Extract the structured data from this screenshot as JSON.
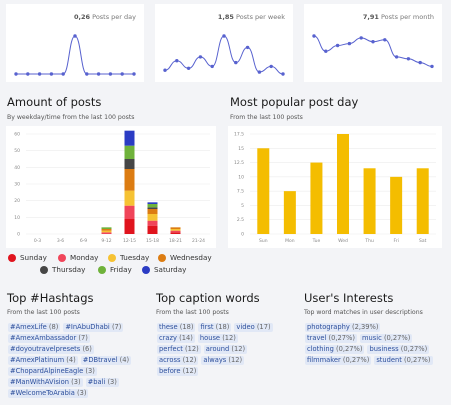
{
  "stats": [
    {
      "value": "0,26",
      "label": "Posts per day",
      "series": [
        0,
        0,
        0,
        0,
        0,
        1,
        0,
        0,
        0,
        0,
        0
      ]
    },
    {
      "value": "1,85",
      "label": "Posts per week",
      "series": [
        0.1,
        0.35,
        0.15,
        0.45,
        0.2,
        1,
        0.3,
        0.7,
        0.05,
        0.2,
        0
      ]
    },
    {
      "value": "7,91",
      "label": "Posts per month",
      "series": [
        1,
        0.6,
        0.75,
        0.8,
        0.95,
        0.85,
        0.9,
        0.45,
        0.4,
        0.3,
        0.2
      ]
    }
  ],
  "amount": {
    "title": "Amount of posts",
    "subtitle": "By weekday/time from the last 100 posts"
  },
  "popular": {
    "title": "Most popular post day",
    "subtitle": "From the last 100 posts"
  },
  "chart_data": [
    {
      "type": "bar",
      "stacked": true,
      "categories": [
        "0-3",
        "3-6",
        "6-9",
        "9-12",
        "12-15",
        "15-18",
        "18-21",
        "21-24"
      ],
      "ylim": [
        0,
        60
      ],
      "yticks": [
        0,
        10,
        20,
        30,
        40,
        50,
        60
      ],
      "series": [
        {
          "name": "Sunday",
          "color": "#e0141e",
          "values": [
            0,
            0,
            0,
            0,
            9,
            5,
            1,
            0
          ]
        },
        {
          "name": "Monday",
          "color": "#f0455a",
          "values": [
            0,
            0,
            0,
            1,
            8,
            3,
            1,
            0
          ]
        },
        {
          "name": "Tuesday",
          "color": "#f6c233",
          "values": [
            0,
            0,
            0,
            1,
            9,
            4,
            1,
            0
          ]
        },
        {
          "name": "Wednesday",
          "color": "#dc7c12",
          "values": [
            0,
            0,
            0,
            1,
            13,
            3,
            1,
            0
          ]
        },
        {
          "name": "Thursday",
          "color": "#464646",
          "values": [
            0,
            0,
            0,
            0,
            6,
            1,
            0,
            0
          ]
        },
        {
          "name": "Friday",
          "color": "#6fb23b",
          "values": [
            0,
            0,
            0,
            1,
            8,
            2,
            0,
            0
          ]
        },
        {
          "name": "Saturday",
          "color": "#2b3cc4",
          "values": [
            0,
            0,
            0,
            0,
            9,
            1,
            0,
            0
          ]
        }
      ]
    },
    {
      "type": "bar",
      "categories": [
        "Sun",
        "Mon",
        "Tue",
        "Wed",
        "Thu",
        "Fri",
        "Sat"
      ],
      "ylim": [
        0,
        17.5
      ],
      "yticks": [
        0,
        2.5,
        5,
        7.5,
        10,
        12.5,
        15,
        17.5
      ],
      "values": [
        15,
        7.5,
        12.5,
        17.5,
        11.5,
        10,
        11.5
      ],
      "color": "#f4bd00"
    }
  ],
  "hashtags": {
    "title": "Top #Hashtags",
    "subtitle": "From the last 100 posts",
    "rows": [
      [
        {
          "text": "#AmexLife",
          "count": "(8)"
        },
        {
          "text": "#InAbuDhabi",
          "count": "(7)"
        }
      ],
      [
        {
          "text": "#AmexAmbassador",
          "count": "(7)"
        }
      ],
      [
        {
          "text": "#doyoutravelpresets",
          "count": "(6)"
        }
      ],
      [
        {
          "text": "#AmexPlatinum",
          "count": "(4)"
        },
        {
          "text": "#DBtravel",
          "count": "(4)"
        }
      ],
      [
        {
          "text": "#ChopardAlpineEagle",
          "count": "(3)"
        }
      ],
      [
        {
          "text": "#ManWithAVision",
          "count": "(3)"
        },
        {
          "text": "#bali",
          "count": "(3)"
        }
      ],
      [
        {
          "text": "#WelcomeToArabia",
          "count": "(3)"
        }
      ]
    ]
  },
  "captions": {
    "title": "Top caption words",
    "subtitle": "From the last 100 posts",
    "rows": [
      [
        {
          "text": "these",
          "count": "(18)"
        },
        {
          "text": "first",
          "count": "(18)"
        },
        {
          "text": "video",
          "count": "(17)"
        }
      ],
      [
        {
          "text": "crazy",
          "count": "(14)"
        },
        {
          "text": "house",
          "count": "(12)"
        }
      ],
      [
        {
          "text": "perfect",
          "count": "(12)"
        },
        {
          "text": "around",
          "count": "(12)"
        }
      ],
      [
        {
          "text": "across",
          "count": "(12)"
        },
        {
          "text": "always",
          "count": "(12)"
        }
      ],
      [
        {
          "text": "before",
          "count": "(12)"
        }
      ]
    ]
  },
  "interests": {
    "title": "User's Interests",
    "subtitle": "Top word matches in user descriptions",
    "rows": [
      [
        {
          "text": "photography",
          "count": "(2,39%)"
        }
      ],
      [
        {
          "text": "travel",
          "count": "(0,27%)"
        },
        {
          "text": "music",
          "count": "(0,27%)"
        }
      ],
      [
        {
          "text": "clothing",
          "count": "(0,27%)"
        },
        {
          "text": "business",
          "count": "(0,27%)"
        }
      ],
      [
        {
          "text": "filmmaker",
          "count": "(0,27%)"
        },
        {
          "text": "student",
          "count": "(0,27%)"
        }
      ]
    ]
  }
}
